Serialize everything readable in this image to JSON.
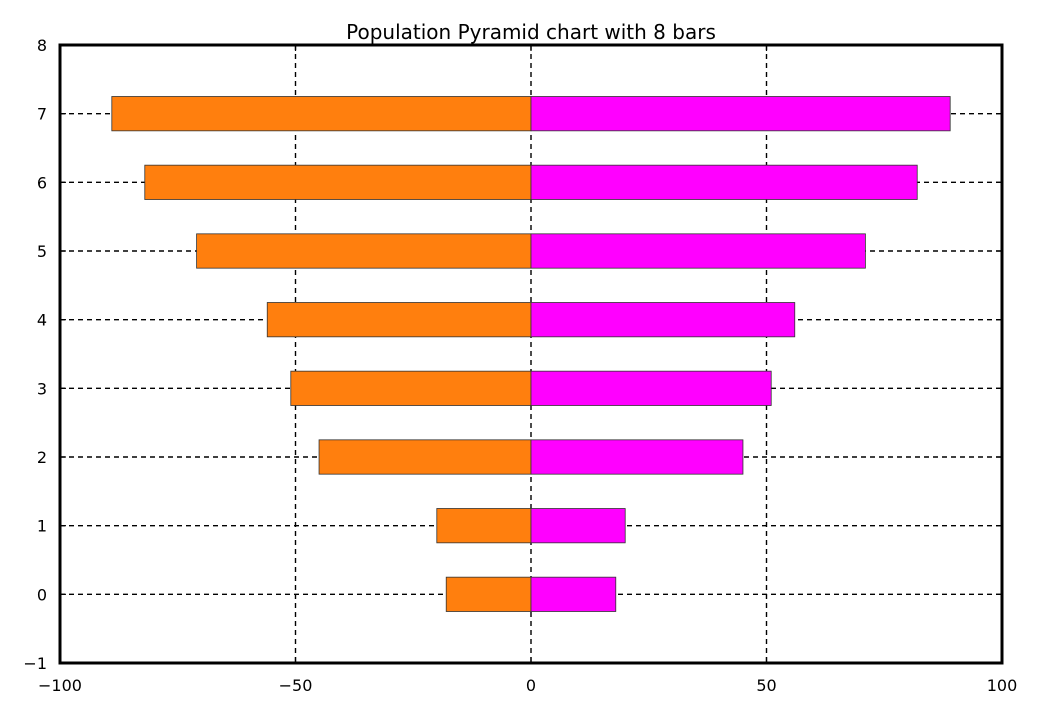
{
  "chart_data": {
    "type": "bar",
    "orientation": "horizontal",
    "title": "Population Pyramid chart with 8 bars",
    "xlabel": "",
    "ylabel": "",
    "categories": [
      0,
      1,
      2,
      3,
      4,
      5,
      6,
      7
    ],
    "series": [
      {
        "color": "#ff7f0e",
        "values": [
          -18,
          -20,
          -45,
          -51,
          -56,
          -71,
          -82,
          -89
        ]
      },
      {
        "color": "#ff00ff",
        "values": [
          18,
          20,
          45,
          51,
          56,
          71,
          82,
          89
        ]
      }
    ],
    "xlim": [
      -100,
      100
    ],
    "ylim": [
      -1,
      8
    ],
    "xticks": [
      -100,
      -50,
      0,
      50,
      100
    ],
    "xtick_labels": [
      "−100",
      "−50",
      "0",
      "50",
      "100"
    ],
    "yticks": [
      -1,
      0,
      1,
      2,
      3,
      4,
      5,
      6,
      7,
      8
    ],
    "ytick_labels": [
      "−1",
      "0",
      "1",
      "2",
      "3",
      "4",
      "5",
      "6",
      "7",
      "8"
    ],
    "grid": true,
    "grid_style": "dashed",
    "legend": "none"
  }
}
